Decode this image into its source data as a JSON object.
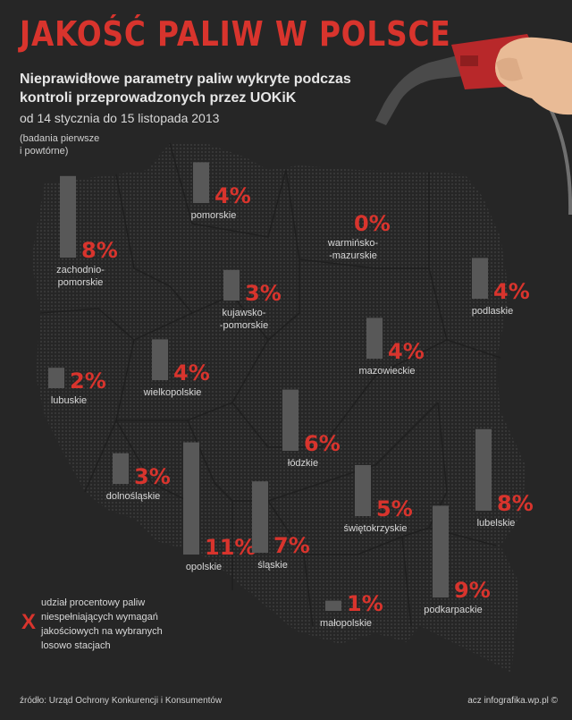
{
  "header": {
    "title": "JAKOŚĆ PALIW W POLSCE",
    "subtitle": "Nieprawidłowe parametry paliw wykryte podczas kontroli przeprowadzonych przez UOKiK",
    "date_range": "od 14 stycznia do 15 listopada 2013",
    "note": "(badania pierwsze i powtórne)"
  },
  "legend": {
    "symbol": "X",
    "text": "udział procentowy paliw niespełniających wymagań jakościowych na wybranych losowo stacjach"
  },
  "footer": {
    "source": "źródło: Urząd Ochrony Konkurencji i Konsumentów",
    "credit": "acz infografika.wp.pl ©"
  },
  "colors": {
    "background": "#262626",
    "accent": "#d8342d",
    "bar": "#585858",
    "text": "#d8d8d8",
    "map_dots": "#3a3a3a"
  },
  "chart_data": {
    "type": "bar",
    "title": "JAKOŚĆ PALIW W POLSCE",
    "unit": "%",
    "categories": [
      "pomorskie",
      "warmińsko-mazurskie",
      "zachodniopomorskie",
      "kujawsko-pomorskie",
      "podlaskie",
      "mazowieckie",
      "lubuskie",
      "wielkopolskie",
      "łódzkie",
      "lubelskie",
      "dolnośląskie",
      "opolskie",
      "świętokrzyskie",
      "śląskie",
      "podkarpackie",
      "małopolskie"
    ],
    "values": [
      4,
      0,
      8,
      3,
      4,
      4,
      2,
      4,
      6,
      8,
      3,
      11,
      5,
      7,
      9,
      1
    ],
    "labels": [
      "4%",
      "0%",
      "8%",
      "3%",
      "4%",
      "4%",
      "2%",
      "4%",
      "6%",
      "8%",
      "3%",
      "11%",
      "5%",
      "7%",
      "9%",
      "1%"
    ],
    "names": [
      "pomorskie",
      "warmińsko-\n-mazurskie",
      "zachodnio-\npomorskie",
      "kujawsko-\n-pomorskie",
      "podlaskie",
      "mazowieckie",
      "lubuskie",
      "wielkopolskie",
      "łódzkie",
      "lubelskie",
      "dolnośląskie",
      "opolskie",
      "świętokrzyskie",
      "śląskie",
      "podkarpackie",
      "małopolskie"
    ]
  }
}
